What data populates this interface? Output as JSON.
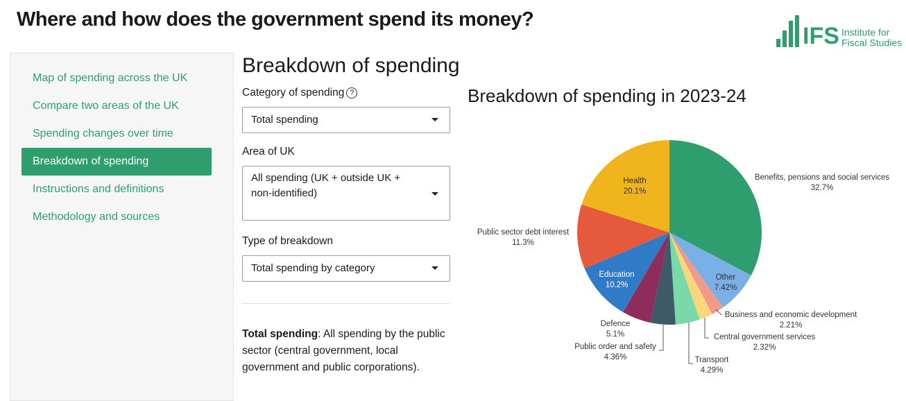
{
  "header": {
    "title": "Where and how does the government spend its money?"
  },
  "logo": {
    "abbr": "IFS",
    "name_lines": [
      "Institute for",
      "Fiscal Studies"
    ]
  },
  "nav": {
    "items": [
      "Map of spending across the UK",
      "Compare two areas of the UK",
      "Spending changes over time",
      "Breakdown of spending",
      "Instructions and definitions",
      "Methodology and sources"
    ]
  },
  "panel": {
    "title": "Breakdown of spending",
    "fields": [
      {
        "label": "Category of spending",
        "help": "?",
        "value": "Total spending"
      },
      {
        "label": "Area of UK",
        "value": "All spending (UK + outside UK + non-identified)"
      },
      {
        "label": "Type of breakdown",
        "value": "Total spending by category"
      }
    ]
  },
  "description": {
    "term": "Total spending",
    "text": ": All spending by the public sector (central government, local government and public corporations)."
  },
  "chart_data": {
    "type": "pie",
    "title": "Breakdown of spending in 2023-24",
    "categories": [
      "Benefits, pensions and social services",
      "Other",
      "Business and economic development",
      "Central government services",
      "Transport",
      "Public order and safety",
      "Defence",
      "Education",
      "Public sector debt interest",
      "Health"
    ],
    "values": [
      32.7,
      7.42,
      2.21,
      2.32,
      4.29,
      4.36,
      5.1,
      10.2,
      11.3,
      20.1
    ],
    "value_labels": [
      "32.7%",
      "7.42%",
      "2.21%",
      "2.32%",
      "4.29%",
      "4.36%",
      "5.1%",
      "10.2%",
      "11.3%",
      "20.1%"
    ],
    "colors": [
      "#2e9e6e",
      "#7ab0e6",
      "#f29a8a",
      "#f7d77a",
      "#79d9a9",
      "#3d5a66",
      "#8e2d5b",
      "#2f7bc8",
      "#e55a3c",
      "#f0b41c"
    ]
  }
}
